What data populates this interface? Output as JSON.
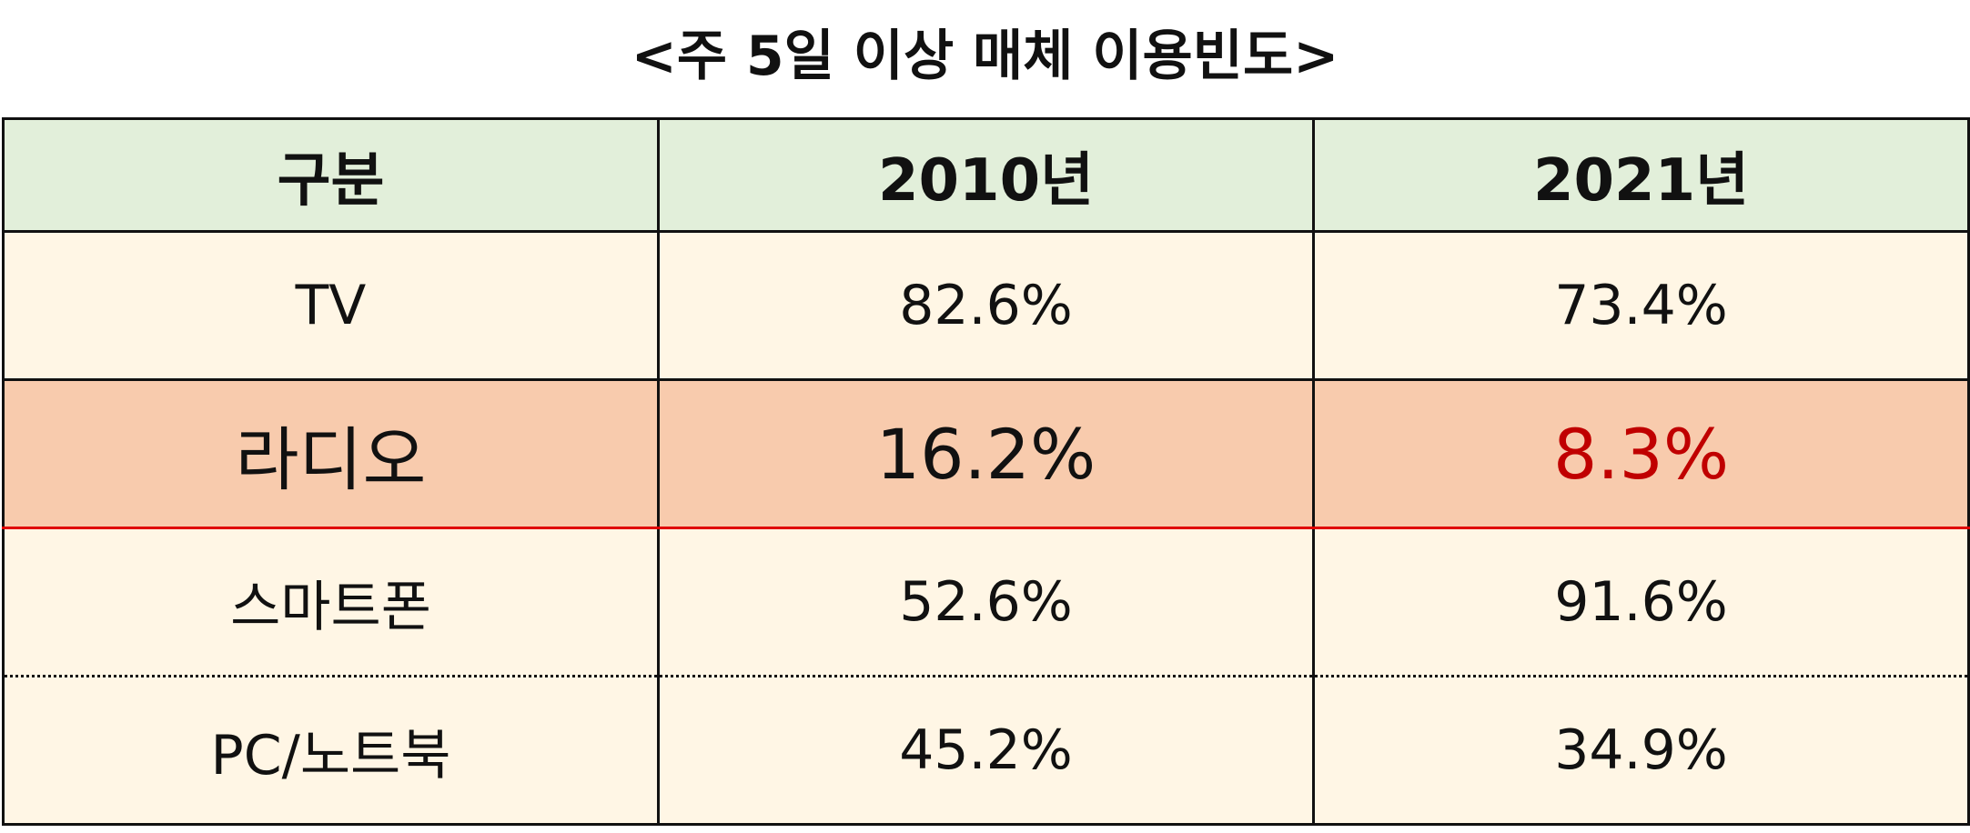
{
  "title": "<주 5일 이상 매체 이용빈도>",
  "table": {
    "header": [
      "구분",
      "2010년",
      "2021년"
    ],
    "rows": [
      [
        "TV",
        "82.6%",
        "73.4%"
      ],
      [
        "라디오",
        "16.2%",
        "8.3%"
      ],
      [
        "스마트폰",
        "52.6%",
        "91.6%"
      ],
      [
        "PC/노트북",
        "45.2%",
        "34.9%"
      ]
    ]
  }
}
